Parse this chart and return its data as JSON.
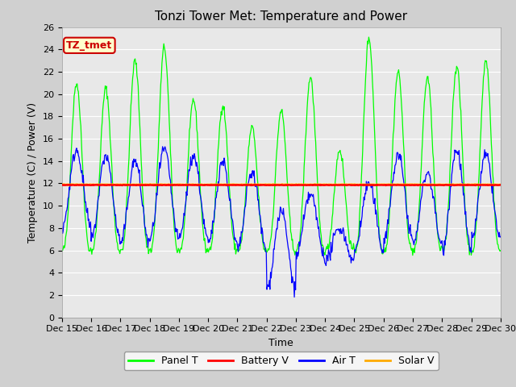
{
  "title": "Tonzi Tower Met: Temperature and Power",
  "xlabel": "Time",
  "ylabel": "Temperature (C) / Power (V)",
  "ylim": [
    0,
    26
  ],
  "yticks": [
    0,
    2,
    4,
    6,
    8,
    10,
    12,
    14,
    16,
    18,
    20,
    22,
    24,
    26
  ],
  "x_tick_labels": [
    "Dec 15",
    "Dec 16",
    "Dec 17",
    "Dec 18",
    "Dec 19",
    "Dec 20",
    "Dec 21",
    "Dec 22",
    "Dec 23",
    "Dec 24",
    "Dec 25",
    "Dec 26",
    "Dec 27",
    "Dec 28",
    "Dec 29",
    "Dec 30"
  ],
  "panel_t_color": "#00ff00",
  "battery_v_color": "#ff0000",
  "air_t_color": "#0000ff",
  "solar_v_color": "#ffaa00",
  "battery_v_value": 11.85,
  "solar_v_value": 11.9,
  "plot_bg_color": "#e8e8e8",
  "fig_bg_color": "#d0d0d0",
  "annotation_text": "TZ_tmet",
  "annotation_bg": "#ffffcc",
  "annotation_border": "#cc0000",
  "legend_entries": [
    "Panel T",
    "Battery V",
    "Air T",
    "Solar V"
  ],
  "title_fontsize": 11,
  "axis_label_fontsize": 9,
  "tick_fontsize": 8,
  "legend_fontsize": 9,
  "panel_t_amplitudes": [
    21,
    20.5,
    23,
    24.2,
    19.5,
    19,
    17,
    18.5,
    21.5,
    15,
    25,
    22,
    21.5,
    22.5,
    23
  ],
  "panel_t_base": 6,
  "air_t_peaks": [
    15,
    14.5,
    14,
    15,
    14.5,
    14,
    13,
    9.5,
    11,
    8,
    12,
    14.5,
    13,
    15,
    14.5
  ],
  "air_t_troughs": [
    8,
    7,
    6.5,
    7,
    7,
    6.5,
    6,
    2.5,
    5.5,
    5,
    6,
    7,
    6.5,
    6,
    7
  ]
}
